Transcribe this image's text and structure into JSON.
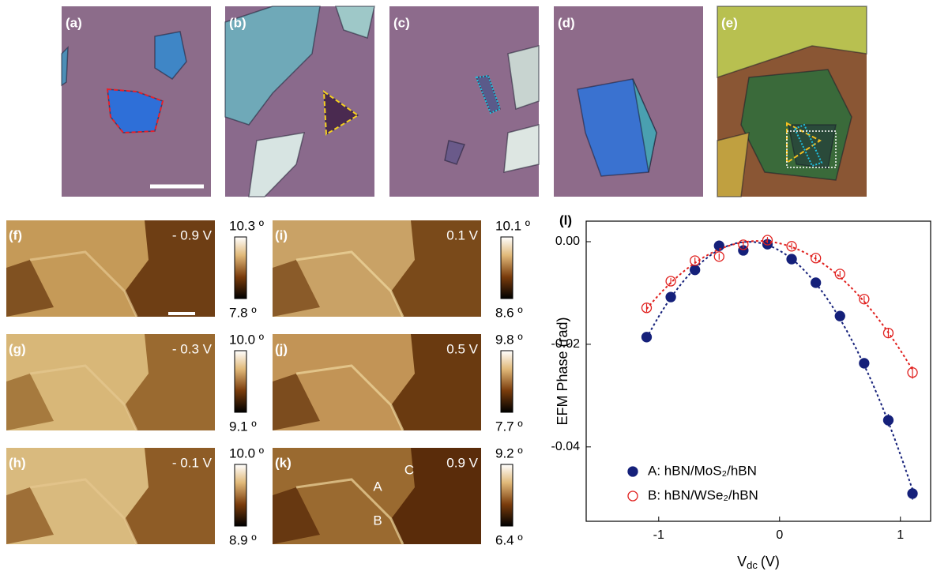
{
  "optical_panels": [
    {
      "label": "(a)"
    },
    {
      "label": "(b)"
    },
    {
      "label": "(c)"
    },
    {
      "label": "(d)"
    },
    {
      "label": "(e)"
    }
  ],
  "efm_panels": [
    {
      "label": "(f)",
      "voltage": "- 0.9 V",
      "cbar_max": "10.3 º",
      "cbar_min": "7.8 º"
    },
    {
      "label": "(g)",
      "voltage": "- 0.3 V",
      "cbar_max": "10.0 º",
      "cbar_min": "9.1 º"
    },
    {
      "label": "(h)",
      "voltage": "- 0.1 V",
      "cbar_max": "10.0 º",
      "cbar_min": "8.9 º"
    },
    {
      "label": "(i)",
      "voltage": "0.1 V",
      "cbar_max": "10.1 º",
      "cbar_min": "8.6 º"
    },
    {
      "label": "(j)",
      "voltage": "0.5 V",
      "cbar_max": "9.8 º",
      "cbar_min": "7.7 º"
    },
    {
      "label": "(k)",
      "voltage": "0.9 V",
      "cbar_max": "9.2 º",
      "cbar_min": "6.4 º"
    }
  ],
  "k_annotations": [
    "A",
    "B",
    "C"
  ],
  "chart_data": {
    "type": "scatter",
    "panel_label": "(l)",
    "xlabel": {
      "main": "V",
      "sub": "dc",
      "unit": "(V)"
    },
    "ylabel": "EFM Phase (rad)",
    "x": [
      -1.1,
      -0.9,
      -0.7,
      -0.5,
      -0.3,
      -0.1,
      0.1,
      0.3,
      0.5,
      0.7,
      0.9,
      1.1
    ],
    "series": [
      {
        "name": "A: hBN/MoS₂/hBN",
        "color": "#15207a",
        "marker": "filled",
        "values": [
          -0.0186,
          -0.0108,
          -0.0055,
          -0.0008,
          -0.0017,
          -0.0005,
          -0.0034,
          -0.008,
          -0.0145,
          -0.0237,
          -0.0348,
          -0.0491
        ],
        "errors": [
          0.0006,
          0.0006,
          0.0006,
          0.0006,
          0.0006,
          0.0006,
          0.0006,
          0.0006,
          0.0006,
          0.0006,
          0.0012,
          0.0012
        ]
      },
      {
        "name": "B: hBN/WSe₂/hBN",
        "color": "#e0201e",
        "marker": "open",
        "values": [
          -0.0129,
          -0.0077,
          -0.0037,
          -0.0029,
          -0.0006,
          0.0003,
          -0.0009,
          -0.0032,
          -0.0063,
          -0.0112,
          -0.0178,
          -0.0255
        ],
        "errors": [
          0.0008,
          0.0006,
          0.0006,
          0.0006,
          0.0006,
          0.0006,
          0.0006,
          0.0006,
          0.0006,
          0.0006,
          0.001,
          0.0012
        ]
      }
    ],
    "xlim": [
      -1.6,
      1.25
    ],
    "ylim": [
      -0.0545,
      0.004
    ],
    "xticks": [
      -1,
      0,
      1
    ],
    "yticks": [
      {
        "value": 0,
        "label": "0.00"
      },
      {
        "value": -0.02,
        "label": "-0.02"
      },
      {
        "value": -0.04,
        "label": "-0.04"
      }
    ]
  }
}
